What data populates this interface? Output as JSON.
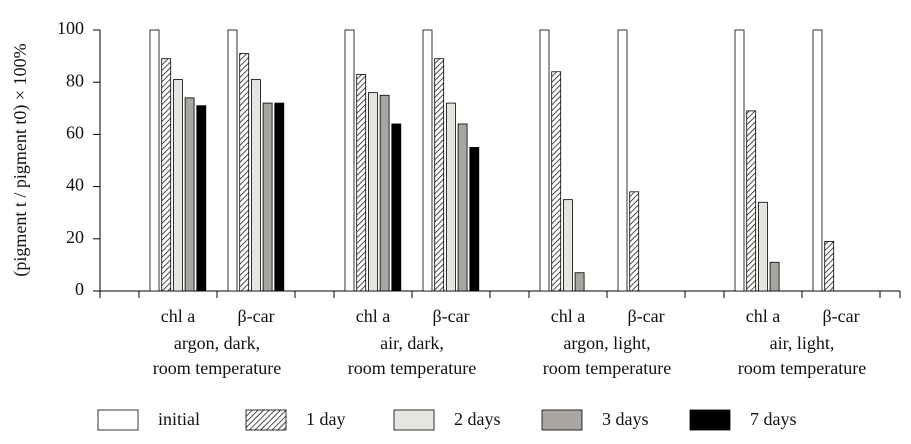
{
  "chart_data": {
    "type": "bar",
    "y_label": "(pigment t / pigment t0) × 100%",
    "groups": [
      [
        "argon, dark,",
        "room temperature"
      ],
      [
        "air, dark,",
        "room temperature"
      ],
      [
        "argon, light,",
        "room temperature"
      ],
      [
        "air, light,",
        "room temperature"
      ]
    ],
    "categories": [
      "chl a",
      "β-car",
      "chl a",
      "β-car",
      "chl a",
      "β-car",
      "chl a",
      "β-car"
    ],
    "series": [
      {
        "name": "initial",
        "color": "#ffffff",
        "values": [
          100,
          100,
          100,
          100,
          100,
          100,
          100,
          100
        ]
      },
      {
        "name": "1 day",
        "color": "#ffffff",
        "pattern": "hatch",
        "values": [
          89,
          91,
          83,
          89,
          84,
          38,
          69,
          19
        ]
      },
      {
        "name": "2 days",
        "color": "#e6e6e1",
        "values": [
          81,
          81,
          76,
          72,
          35,
          null,
          34,
          null
        ]
      },
      {
        "name": "3 days",
        "color": "#a9a5a0",
        "values": [
          74,
          72,
          75,
          64,
          7,
          null,
          11,
          null
        ]
      },
      {
        "name": "7 days",
        "color": "#000000",
        "values": [
          71,
          72,
          64,
          55,
          null,
          null,
          null,
          null
        ]
      }
    ],
    "ylim": [
      0,
      100
    ],
    "yticks": [
      0,
      20,
      40,
      60,
      80,
      100
    ],
    "legend": "bottom"
  }
}
